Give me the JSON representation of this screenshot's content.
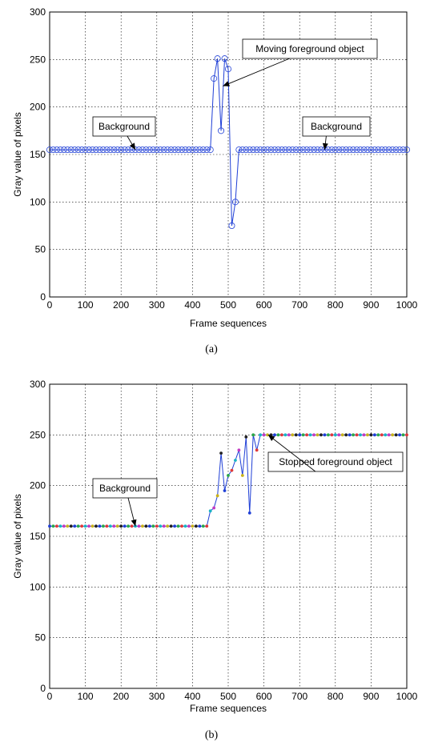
{
  "chart_data": [
    {
      "type": "line",
      "caption": "(a)",
      "xlabel": "Frame sequences",
      "ylabel": "Gray value of pixels",
      "xlim": [
        0,
        1000
      ],
      "ylim": [
        0,
        300
      ],
      "xticks": [
        0,
        100,
        200,
        300,
        400,
        500,
        600,
        700,
        800,
        900,
        1000
      ],
      "yticks": [
        0,
        50,
        100,
        150,
        200,
        250,
        300
      ],
      "grid": true,
      "marker": "circle",
      "series": [
        {
          "color": "#1f3fd6",
          "x": [
            0,
            10,
            20,
            30,
            40,
            50,
            60,
            70,
            80,
            90,
            100,
            110,
            120,
            130,
            140,
            150,
            160,
            170,
            180,
            190,
            200,
            210,
            220,
            230,
            240,
            250,
            260,
            270,
            280,
            290,
            300,
            310,
            320,
            330,
            340,
            350,
            360,
            370,
            380,
            390,
            400,
            410,
            420,
            430,
            440,
            450,
            460,
            470,
            480,
            490,
            500,
            510,
            520,
            530,
            540,
            550,
            560,
            570,
            580,
            590,
            600,
            610,
            620,
            630,
            640,
            650,
            660,
            670,
            680,
            690,
            700,
            710,
            720,
            730,
            740,
            750,
            760,
            770,
            780,
            790,
            800,
            810,
            820,
            830,
            840,
            850,
            860,
            870,
            880,
            890,
            900,
            910,
            920,
            930,
            940,
            950,
            960,
            970,
            980,
            990,
            1000
          ],
          "y": [
            155,
            155,
            155,
            155,
            155,
            155,
            155,
            155,
            155,
            155,
            155,
            155,
            155,
            155,
            155,
            155,
            155,
            155,
            155,
            155,
            155,
            155,
            155,
            155,
            155,
            155,
            155,
            155,
            155,
            155,
            155,
            155,
            155,
            155,
            155,
            155,
            155,
            155,
            155,
            155,
            155,
            155,
            155,
            155,
            155,
            155,
            230,
            251,
            175,
            251,
            240,
            75,
            100,
            155,
            155,
            155,
            155,
            155,
            155,
            155,
            155,
            155,
            155,
            155,
            155,
            155,
            155,
            155,
            155,
            155,
            155,
            155,
            155,
            155,
            155,
            155,
            155,
            155,
            155,
            155,
            155,
            155,
            155,
            155,
            155,
            155,
            155,
            155,
            155,
            155,
            155,
            155,
            155,
            155,
            155,
            155,
            155,
            155,
            155,
            155,
            155
          ]
        }
      ],
      "annotations": [
        {
          "text": "Background",
          "x": 240,
          "y": 155
        },
        {
          "text": "Moving foreground object",
          "x": 485,
          "y": 222
        },
        {
          "text": "Background",
          "x": 770,
          "y": 155
        }
      ]
    },
    {
      "type": "line",
      "caption": "(b)",
      "xlabel": "Frame sequences",
      "ylabel": "Gray value of pixels",
      "xlim": [
        0,
        1000
      ],
      "ylim": [
        0,
        300
      ],
      "xticks": [
        0,
        100,
        200,
        300,
        400,
        500,
        600,
        700,
        800,
        900,
        1000
      ],
      "yticks": [
        0,
        50,
        100,
        150,
        200,
        250,
        300
      ],
      "grid": true,
      "marker": "dot",
      "marker_colors": [
        "#1f3fd6",
        "#2aa84a",
        "#e03a3a",
        "#19b5c4",
        "#c23bc2",
        "#c9b21a",
        "#222222"
      ],
      "series": [
        {
          "color": "#1f3fd6",
          "x": [
            0,
            10,
            20,
            30,
            40,
            50,
            60,
            70,
            80,
            90,
            100,
            110,
            120,
            130,
            140,
            150,
            160,
            170,
            180,
            190,
            200,
            210,
            220,
            230,
            240,
            250,
            260,
            270,
            280,
            290,
            300,
            310,
            320,
            330,
            340,
            350,
            360,
            370,
            380,
            390,
            400,
            410,
            420,
            430,
            440,
            450,
            460,
            470,
            480,
            490,
            500,
            510,
            520,
            530,
            540,
            550,
            560,
            570,
            580,
            590,
            600,
            610,
            620,
            630,
            640,
            650,
            660,
            670,
            680,
            690,
            700,
            710,
            720,
            730,
            740,
            750,
            760,
            770,
            780,
            790,
            800,
            810,
            820,
            830,
            840,
            850,
            860,
            870,
            880,
            890,
            900,
            910,
            920,
            930,
            940,
            950,
            960,
            970,
            980,
            990,
            1000
          ],
          "y": [
            160,
            160,
            160,
            160,
            160,
            160,
            160,
            160,
            160,
            160,
            160,
            160,
            160,
            160,
            160,
            160,
            160,
            160,
            160,
            160,
            160,
            160,
            160,
            160,
            160,
            160,
            160,
            160,
            160,
            160,
            160,
            160,
            160,
            160,
            160,
            160,
            160,
            160,
            160,
            160,
            160,
            160,
            160,
            160,
            160,
            175,
            178,
            190,
            232,
            195,
            210,
            215,
            225,
            235,
            210,
            248,
            173,
            250,
            235,
            250,
            250,
            250,
            250,
            250,
            250,
            250,
            250,
            250,
            250,
            250,
            250,
            250,
            250,
            250,
            250,
            250,
            250,
            250,
            250,
            250,
            250,
            250,
            250,
            250,
            250,
            250,
            250,
            250,
            250,
            250,
            250,
            250,
            250,
            250,
            250,
            250,
            250,
            250,
            250,
            250,
            250
          ]
        }
      ],
      "annotations": [
        {
          "text": "Background",
          "x": 240,
          "y": 160
        },
        {
          "text": "Stopped foreground object",
          "x": 612,
          "y": 250
        }
      ]
    }
  ]
}
